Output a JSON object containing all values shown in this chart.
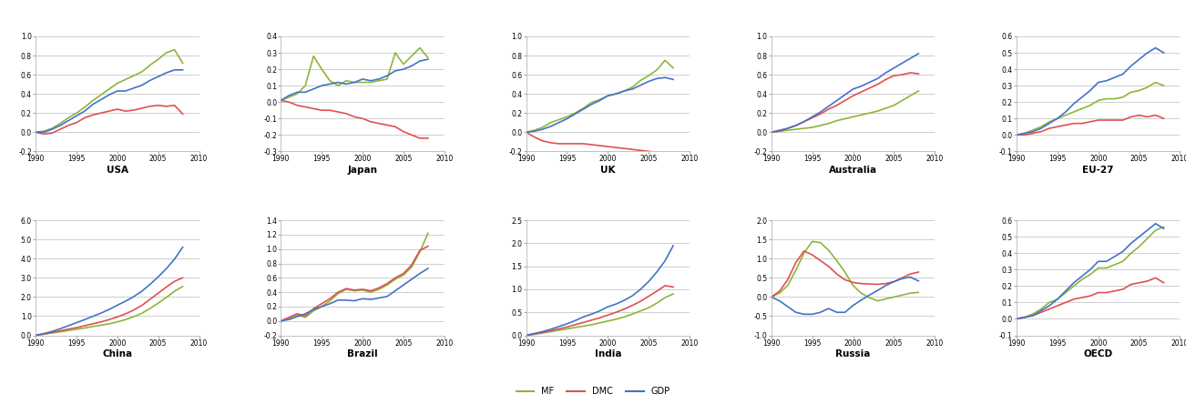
{
  "years": [
    1990,
    1991,
    1992,
    1993,
    1994,
    1995,
    1996,
    1997,
    1998,
    1999,
    2000,
    2001,
    2002,
    2003,
    2004,
    2005,
    2006,
    2007,
    2008
  ],
  "countries": [
    "USA",
    "Japan",
    "UK",
    "Australia",
    "EU-27",
    "China",
    "Brazil",
    "India",
    "Russia",
    "OECD"
  ],
  "colors": {
    "MF": "#8db53a",
    "DMC": "#e05050",
    "GDP": "#4472c4"
  },
  "line_width": 1.2,
  "data": {
    "USA": {
      "MF": [
        0.0,
        0.01,
        0.04,
        0.09,
        0.15,
        0.2,
        0.26,
        0.33,
        0.39,
        0.45,
        0.51,
        0.55,
        0.59,
        0.63,
        0.7,
        0.76,
        0.83,
        0.86,
        0.72
      ],
      "DMC": [
        0.0,
        -0.02,
        -0.01,
        0.03,
        0.07,
        0.1,
        0.15,
        0.18,
        0.2,
        0.22,
        0.24,
        0.22,
        0.23,
        0.25,
        0.27,
        0.28,
        0.27,
        0.28,
        0.19
      ],
      "GDP": [
        0.0,
        0.0,
        0.03,
        0.07,
        0.12,
        0.17,
        0.22,
        0.29,
        0.34,
        0.39,
        0.43,
        0.43,
        0.46,
        0.49,
        0.54,
        0.58,
        0.62,
        0.65,
        0.65
      ]
    },
    "Japan": {
      "MF": [
        0.01,
        0.03,
        0.05,
        0.1,
        0.28,
        0.2,
        0.13,
        0.1,
        0.13,
        0.12,
        0.12,
        0.12,
        0.13,
        0.14,
        0.3,
        0.23,
        0.28,
        0.33,
        0.27
      ],
      "DMC": [
        0.01,
        0.0,
        -0.02,
        -0.03,
        -0.04,
        -0.05,
        -0.05,
        -0.06,
        -0.07,
        -0.09,
        -0.1,
        -0.12,
        -0.13,
        -0.14,
        -0.15,
        -0.18,
        -0.2,
        -0.22,
        -0.22
      ],
      "GDP": [
        0.01,
        0.04,
        0.06,
        0.06,
        0.08,
        0.1,
        0.11,
        0.12,
        0.11,
        0.12,
        0.14,
        0.13,
        0.14,
        0.16,
        0.19,
        0.2,
        0.22,
        0.25,
        0.26
      ]
    },
    "UK": {
      "MF": [
        0.0,
        0.02,
        0.05,
        0.1,
        0.13,
        0.16,
        0.2,
        0.25,
        0.31,
        0.34,
        0.38,
        0.4,
        0.43,
        0.47,
        0.54,
        0.59,
        0.65,
        0.75,
        0.67
      ],
      "DMC": [
        0.0,
        -0.05,
        -0.09,
        -0.11,
        -0.12,
        -0.12,
        -0.12,
        -0.12,
        -0.13,
        -0.14,
        -0.15,
        -0.16,
        -0.17,
        -0.18,
        -0.19,
        -0.2,
        -0.21,
        -0.22,
        -0.23
      ],
      "GDP": [
        0.0,
        0.01,
        0.03,
        0.06,
        0.1,
        0.14,
        0.19,
        0.24,
        0.29,
        0.33,
        0.38,
        0.4,
        0.43,
        0.45,
        0.49,
        0.53,
        0.56,
        0.57,
        0.55
      ]
    },
    "Australia": {
      "MF": [
        0.0,
        0.01,
        0.02,
        0.03,
        0.04,
        0.05,
        0.07,
        0.09,
        0.12,
        0.14,
        0.16,
        0.18,
        0.2,
        0.22,
        0.25,
        0.28,
        0.33,
        0.38,
        0.43
      ],
      "DMC": [
        0.0,
        0.01,
        0.04,
        0.07,
        0.11,
        0.15,
        0.19,
        0.24,
        0.28,
        0.33,
        0.38,
        0.42,
        0.46,
        0.5,
        0.55,
        0.59,
        0.6,
        0.62,
        0.61
      ],
      "GDP": [
        0.0,
        0.02,
        0.04,
        0.07,
        0.11,
        0.16,
        0.21,
        0.27,
        0.33,
        0.39,
        0.45,
        0.48,
        0.52,
        0.56,
        0.62,
        0.67,
        0.72,
        0.77,
        0.82
      ]
    },
    "EU-27": {
      "MF": [
        0.0,
        0.01,
        0.03,
        0.05,
        0.08,
        0.1,
        0.12,
        0.14,
        0.16,
        0.18,
        0.21,
        0.22,
        0.22,
        0.23,
        0.26,
        0.27,
        0.29,
        0.32,
        0.3
      ],
      "DMC": [
        0.0,
        0.0,
        0.01,
        0.02,
        0.04,
        0.05,
        0.06,
        0.07,
        0.07,
        0.08,
        0.09,
        0.09,
        0.09,
        0.09,
        0.11,
        0.12,
        0.11,
        0.12,
        0.1
      ],
      "GDP": [
        0.0,
        0.01,
        0.02,
        0.04,
        0.07,
        0.1,
        0.14,
        0.19,
        0.23,
        0.27,
        0.32,
        0.33,
        0.35,
        0.37,
        0.42,
        0.46,
        0.5,
        0.53,
        0.5
      ]
    },
    "China": {
      "MF": [
        0.0,
        0.06,
        0.12,
        0.18,
        0.25,
        0.32,
        0.38,
        0.46,
        0.53,
        0.6,
        0.7,
        0.82,
        0.97,
        1.15,
        1.4,
        1.68,
        1.98,
        2.3,
        2.55
      ],
      "DMC": [
        0.0,
        0.07,
        0.15,
        0.23,
        0.32,
        0.4,
        0.5,
        0.6,
        0.7,
        0.82,
        0.96,
        1.12,
        1.32,
        1.56,
        1.88,
        2.2,
        2.52,
        2.82,
        3.0
      ],
      "GDP": [
        0.0,
        0.09,
        0.2,
        0.34,
        0.5,
        0.66,
        0.82,
        0.99,
        1.16,
        1.35,
        1.57,
        1.78,
        2.02,
        2.3,
        2.66,
        3.05,
        3.48,
        3.98,
        4.6
      ]
    },
    "Brazil": {
      "MF": [
        0.0,
        0.04,
        0.08,
        0.05,
        0.14,
        0.2,
        0.28,
        0.38,
        0.44,
        0.42,
        0.43,
        0.4,
        0.44,
        0.5,
        0.58,
        0.64,
        0.75,
        0.96,
        1.22
      ],
      "DMC": [
        0.0,
        0.05,
        0.1,
        0.07,
        0.17,
        0.24,
        0.31,
        0.4,
        0.45,
        0.43,
        0.44,
        0.42,
        0.46,
        0.52,
        0.6,
        0.66,
        0.78,
        0.98,
        1.04
      ],
      "GDP": [
        0.0,
        0.02,
        0.06,
        0.1,
        0.16,
        0.2,
        0.24,
        0.29,
        0.29,
        0.28,
        0.31,
        0.3,
        0.32,
        0.34,
        0.42,
        0.5,
        0.58,
        0.66,
        0.73
      ]
    },
    "India": {
      "MF": [
        0.0,
        0.02,
        0.05,
        0.08,
        0.11,
        0.14,
        0.17,
        0.2,
        0.23,
        0.27,
        0.31,
        0.35,
        0.4,
        0.46,
        0.53,
        0.6,
        0.7,
        0.82,
        0.9
      ],
      "DMC": [
        0.0,
        0.03,
        0.06,
        0.1,
        0.14,
        0.18,
        0.23,
        0.28,
        0.33,
        0.38,
        0.44,
        0.5,
        0.57,
        0.65,
        0.74,
        0.85,
        0.96,
        1.08,
        1.05
      ],
      "GDP": [
        0.0,
        0.04,
        0.08,
        0.13,
        0.19,
        0.25,
        0.32,
        0.4,
        0.46,
        0.53,
        0.62,
        0.68,
        0.76,
        0.86,
        1.0,
        1.17,
        1.38,
        1.62,
        1.95
      ]
    },
    "Russia": {
      "MF": [
        0.0,
        0.1,
        0.3,
        0.7,
        1.15,
        1.45,
        1.42,
        1.22,
        0.95,
        0.65,
        0.3,
        0.1,
        -0.02,
        -0.1,
        -0.05,
        0.0,
        0.05,
        0.1,
        0.12
      ],
      "DMC": [
        0.0,
        0.15,
        0.45,
        0.9,
        1.2,
        1.1,
        0.95,
        0.8,
        0.6,
        0.45,
        0.38,
        0.35,
        0.34,
        0.33,
        0.35,
        0.4,
        0.5,
        0.6,
        0.65
      ],
      "GDP": [
        0.0,
        -0.1,
        -0.25,
        -0.4,
        -0.45,
        -0.45,
        -0.4,
        -0.3,
        -0.4,
        -0.4,
        -0.22,
        -0.08,
        0.05,
        0.17,
        0.3,
        0.4,
        0.48,
        0.52,
        0.42
      ]
    },
    "OECD": {
      "MF": [
        0.0,
        0.01,
        0.03,
        0.06,
        0.1,
        0.12,
        0.16,
        0.2,
        0.24,
        0.27,
        0.31,
        0.31,
        0.33,
        0.35,
        0.4,
        0.44,
        0.49,
        0.54,
        0.56
      ],
      "DMC": [
        0.0,
        0.01,
        0.02,
        0.04,
        0.06,
        0.08,
        0.1,
        0.12,
        0.13,
        0.14,
        0.16,
        0.16,
        0.17,
        0.18,
        0.21,
        0.22,
        0.23,
        0.25,
        0.22
      ],
      "GDP": [
        0.0,
        0.01,
        0.02,
        0.05,
        0.08,
        0.12,
        0.17,
        0.22,
        0.26,
        0.3,
        0.35,
        0.35,
        0.38,
        0.41,
        0.46,
        0.5,
        0.54,
        0.58,
        0.55
      ]
    }
  },
  "ylims": {
    "USA": [
      -0.2,
      1.0
    ],
    "Japan": [
      -0.3,
      0.4
    ],
    "UK": [
      -0.2,
      1.0
    ],
    "Australia": [
      -0.2,
      1.0
    ],
    "EU-27": [
      -0.1,
      0.6
    ],
    "China": [
      0.0,
      6.0
    ],
    "Brazil": [
      -0.2,
      1.4
    ],
    "India": [
      0.0,
      2.5
    ],
    "Russia": [
      -1.0,
      2.0
    ],
    "OECD": [
      -0.1,
      0.6
    ]
  },
  "yticks": {
    "USA": [
      -0.2,
      0.0,
      0.2,
      0.4,
      0.6,
      0.8,
      1.0
    ],
    "Japan": [
      -0.3,
      -0.2,
      -0.1,
      0.0,
      0.1,
      0.2,
      0.3,
      0.4
    ],
    "UK": [
      -0.2,
      0.0,
      0.2,
      0.4,
      0.6,
      0.8,
      1.0
    ],
    "Australia": [
      -0.2,
      0.0,
      0.2,
      0.4,
      0.6,
      0.8,
      1.0
    ],
    "EU-27": [
      -0.1,
      0.0,
      0.1,
      0.2,
      0.3,
      0.4,
      0.5,
      0.6
    ],
    "China": [
      0.0,
      1.0,
      2.0,
      3.0,
      4.0,
      5.0,
      6.0
    ],
    "Brazil": [
      -0.2,
      0.0,
      0.2,
      0.4,
      0.6,
      0.8,
      1.0,
      1.2,
      1.4
    ],
    "India": [
      0.0,
      0.5,
      1.0,
      1.5,
      2.0,
      2.5
    ],
    "Russia": [
      -1.0,
      -0.5,
      0.0,
      0.5,
      1.0,
      1.5,
      2.0
    ],
    "OECD": [
      -0.1,
      0.0,
      0.1,
      0.2,
      0.3,
      0.4,
      0.5,
      0.6
    ]
  }
}
